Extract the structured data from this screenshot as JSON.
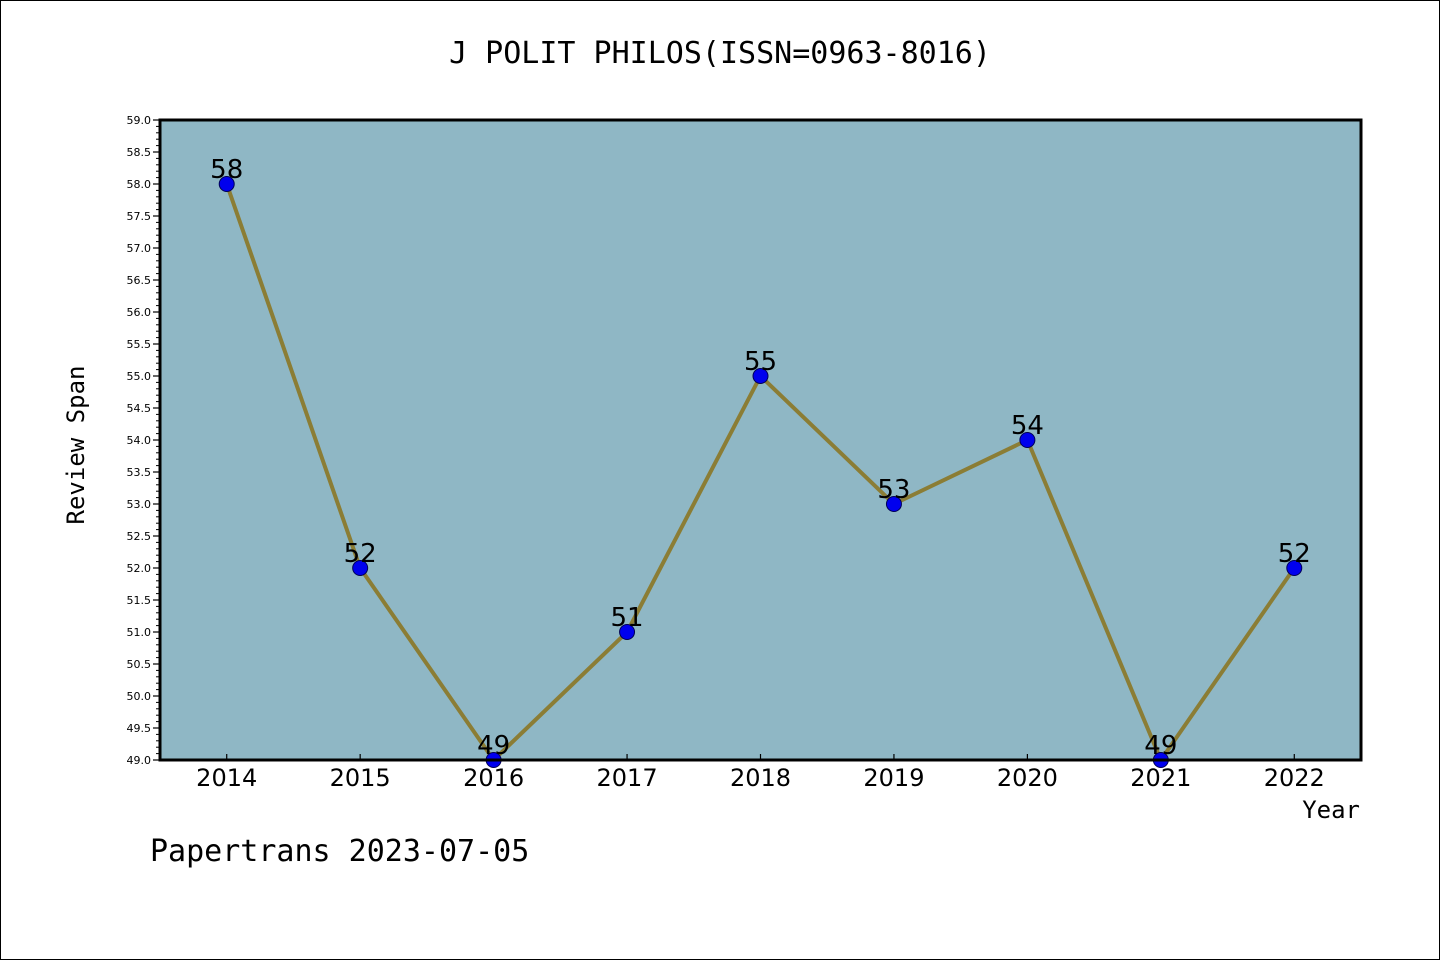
{
  "chart_data": {
    "type": "line",
    "title": "J POLIT PHILOS(ISSN=0963-8016)",
    "xlabel": "Year",
    "ylabel": "Review Span",
    "categories": [
      "2014",
      "2015",
      "2016",
      "2017",
      "2018",
      "2019",
      "2020",
      "2021",
      "2022"
    ],
    "values": [
      58,
      52,
      49,
      51,
      55,
      53,
      54,
      49,
      52
    ],
    "ylim": [
      49.0,
      59.0
    ],
    "ytick_step": 0.5,
    "grid": false,
    "data_labels": true,
    "colors": {
      "plot_background": "#8fb7c5",
      "line": "#8b7d35",
      "marker": "#0000ee"
    }
  },
  "footer": "Papertrans 2023-07-05"
}
